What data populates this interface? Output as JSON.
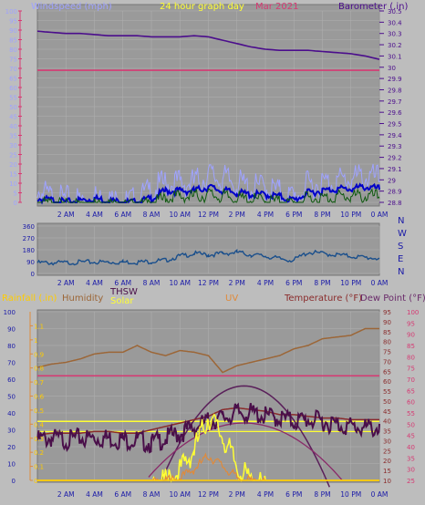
{
  "chart_data": [
    {
      "type": "line",
      "panel": "wind-barometer",
      "title": "24 hour graph day",
      "subtitle": "Mar 2021",
      "left_axis_label": "Windspeed (mph)",
      "right_axis_label": "Barometer (.in)",
      "left_ticks": [
        "100",
        "95",
        "90",
        "85",
        "80",
        "75",
        "70",
        "65",
        "60",
        "55",
        "50",
        "45",
        "40",
        "35",
        "30",
        "25",
        "20",
        "15",
        "10",
        "5",
        "0"
      ],
      "right_ticks": [
        "30.5",
        "30.4",
        "30.3",
        "30.2",
        "30.1",
        "30",
        "29.9",
        "29.8",
        "29.7",
        "29.6",
        "29.5",
        "29.4",
        "29.3",
        "29.2",
        "29.1",
        "29",
        "28.9",
        "28.8"
      ],
      "x_ticks": [
        "2 AM",
        "4 AM",
        "6 AM",
        "8 AM",
        "10 AM",
        "12 PM",
        "2 PM",
        "4 PM",
        "6 PM",
        "8 PM",
        "10 PM",
        "0 AM"
      ],
      "series": [
        {
          "name": "Barometer",
          "axis": "right",
          "color": "#4b0d8c",
          "x": [
            0,
            1,
            2,
            3,
            4,
            5,
            6,
            7,
            8,
            9,
            10,
            11,
            12,
            13,
            14,
            15,
            16,
            17,
            18,
            19,
            20,
            21,
            22,
            23,
            24
          ],
          "values": [
            30.32,
            30.31,
            30.3,
            30.3,
            30.29,
            30.28,
            30.28,
            30.28,
            30.27,
            30.27,
            30.27,
            30.28,
            30.27,
            30.24,
            30.21,
            30.18,
            30.16,
            30.15,
            30.15,
            30.15,
            30.14,
            30.13,
            30.12,
            30.1,
            30.07
          ]
        },
        {
          "name": "Pink reference",
          "axis": "left",
          "color": "#d63a73",
          "x": [
            0,
            24
          ],
          "values": [
            69,
            69
          ]
        },
        {
          "name": "Wind gust",
          "axis": "left",
          "color": "#9fa3ff",
          "x": [
            0,
            1,
            2,
            3,
            4,
            5,
            6,
            7,
            8,
            9,
            10,
            11,
            12,
            13,
            14,
            15,
            16,
            17,
            18,
            19,
            20,
            21,
            22,
            23,
            24
          ],
          "values": [
            10,
            6,
            5,
            5,
            6,
            5,
            3,
            5,
            10,
            14,
            14,
            14,
            18,
            16,
            14,
            11,
            12,
            9,
            6,
            13,
            14,
            15,
            16,
            17,
            16
          ]
        },
        {
          "name": "Wind avg",
          "axis": "left",
          "color": "#0000c8",
          "x": [
            0,
            1,
            2,
            3,
            4,
            5,
            6,
            7,
            8,
            9,
            10,
            11,
            12,
            13,
            14,
            15,
            16,
            17,
            18,
            19,
            20,
            21,
            22,
            23,
            24
          ],
          "values": [
            3,
            2,
            1,
            2,
            3,
            2,
            1,
            1,
            3,
            7,
            7,
            7,
            9,
            7,
            6,
            5,
            5,
            4,
            2,
            6,
            7,
            8,
            8,
            9,
            8
          ]
        },
        {
          "name": "Wind speed",
          "axis": "left",
          "color": "#0f5a0f",
          "x": [
            0,
            1,
            2,
            3,
            4,
            5,
            6,
            7,
            8,
            9,
            10,
            11,
            12,
            13,
            14,
            15,
            16,
            17,
            18,
            19,
            20,
            21,
            22,
            23,
            24
          ],
          "values": [
            1,
            1,
            0,
            1,
            1,
            1,
            0,
            0,
            1,
            4,
            5,
            5,
            6,
            5,
            4,
            3,
            3,
            2,
            1,
            4,
            4,
            5,
            5,
            5,
            5
          ]
        }
      ]
    },
    {
      "type": "line",
      "panel": "wind-direction",
      "left_ticks": [
        "360",
        "270",
        "180",
        "90",
        "0"
      ],
      "right_labels": [
        "N",
        "W",
        "S",
        "E",
        "N"
      ],
      "x_ticks": [
        "2 AM",
        "4 AM",
        "6 AM",
        "8 AM",
        "10 AM",
        "12 PM",
        "2 PM",
        "4 PM",
        "6 PM",
        "8 PM",
        "10 PM",
        "0 AM"
      ],
      "ylim": [
        0,
        360
      ],
      "series": [
        {
          "name": "Wind direction",
          "color": "#1a4f8c",
          "x": [
            0,
            1,
            2,
            3,
            4,
            5,
            6,
            7,
            8,
            9,
            10,
            11,
            12,
            13,
            14,
            15,
            16,
            17,
            18,
            19,
            20,
            21,
            22,
            23,
            24
          ],
          "values": [
            90,
            90,
            90,
            95,
            95,
            95,
            95,
            95,
            100,
            110,
            140,
            160,
            150,
            160,
            170,
            150,
            140,
            120,
            110,
            170,
            160,
            150,
            140,
            130,
            125
          ]
        }
      ]
    },
    {
      "type": "line",
      "panel": "temperature-humidity",
      "legend": [
        "Rainfall (.in)",
        "Humidity",
        "THSW",
        "Solar",
        "UV",
        "Temperature (°F)",
        "Dew Point (°F)"
      ],
      "left_ticks_outer": [
        "100",
        "90",
        "80",
        "70",
        "60",
        "50",
        "40",
        "30",
        "20",
        "10",
        "0"
      ],
      "left_ticks_inner": [
        "1.1",
        "1",
        "0.9",
        "0.8",
        "0.7",
        "0.6",
        "0.5",
        "0.4",
        "0.3",
        "0.2",
        "0.1",
        "0"
      ],
      "right_ticks_inner": [
        "95",
        "90",
        "85",
        "80",
        "75",
        "70",
        "65",
        "60",
        "55",
        "50",
        "45",
        "40",
        "35",
        "30",
        "25",
        "20",
        "15",
        "10"
      ],
      "right_ticks_outer": [
        "100",
        "95",
        "90",
        "85",
        "80",
        "75",
        "70",
        "65",
        "60",
        "55",
        "50",
        "45",
        "40",
        "35",
        "30",
        "25"
      ],
      "x_ticks": [
        "2 AM",
        "4 AM",
        "6 AM",
        "8 AM",
        "10 AM",
        "12 PM",
        "2 PM",
        "4 PM",
        "6 PM",
        "8 PM",
        "10 PM",
        "0 AM"
      ],
      "series": [
        {
          "name": "Humidity",
          "color": "#9c6637",
          "x": [
            0,
            1,
            2,
            3,
            4,
            5,
            6,
            7,
            8,
            9,
            10,
            11,
            12,
            13,
            14,
            15,
            16,
            17,
            18,
            19,
            20,
            21,
            22,
            23,
            24
          ],
          "values": [
            67,
            69,
            70,
            72,
            75,
            76,
            76,
            80,
            76,
            74,
            77,
            76,
            74,
            64,
            68,
            70,
            72,
            74,
            78,
            80,
            84,
            85,
            86,
            90,
            90
          ]
        },
        {
          "name": "Pink reference",
          "color": "#d63a73",
          "x": [
            0,
            24
          ],
          "values": [
            62,
            62
          ]
        },
        {
          "name": "Temperature",
          "color": "#8a2b2b",
          "x": [
            0,
            1,
            2,
            3,
            4,
            5,
            6,
            7,
            8,
            9,
            10,
            11,
            12,
            13,
            14,
            15,
            16,
            17,
            18,
            19,
            20,
            21,
            22,
            23,
            24
          ],
          "values": [
            27,
            28,
            28,
            28,
            29,
            29,
            28,
            28,
            30,
            32,
            34,
            36,
            38,
            42,
            43,
            42,
            41,
            39,
            39,
            38,
            37,
            37,
            36,
            36,
            36
          ]
        },
        {
          "name": "THSW",
          "color": "#4a0f4a",
          "x": [
            0,
            1,
            2,
            3,
            4,
            5,
            6,
            7,
            8,
            9,
            10,
            11,
            12,
            13,
            14,
            15,
            16,
            17,
            18,
            19,
            20,
            21,
            22,
            23,
            24
          ],
          "values": [
            27,
            28,
            27,
            28,
            28,
            28,
            27,
            27,
            25,
            28,
            31,
            34,
            38,
            40,
            43,
            43,
            41,
            40,
            38,
            39,
            38,
            36,
            35,
            34,
            34
          ]
        },
        {
          "name": "Solar",
          "color": "#ffff33",
          "x": [
            0,
            1,
            2,
            3,
            4,
            5,
            6,
            7,
            8,
            9,
            10,
            11,
            12,
            13,
            14,
            15,
            16,
            17,
            18,
            19,
            20,
            21,
            22,
            23,
            24
          ],
          "values": [
            0,
            0,
            0,
            0,
            0,
            0,
            0,
            0,
            0,
            3,
            10,
            22,
            42,
            30,
            12,
            3,
            0,
            0,
            0,
            0,
            0,
            0,
            0,
            0,
            0
          ]
        },
        {
          "name": "UV",
          "color": "#e08a3a",
          "x": [
            0,
            1,
            2,
            3,
            4,
            5,
            6,
            7,
            8,
            9,
            10,
            11,
            12,
            13,
            14,
            15,
            16,
            17,
            18,
            19,
            20,
            21,
            22,
            23,
            24
          ],
          "values": [
            0,
            0,
            0,
            0,
            0,
            0,
            0,
            0,
            0,
            1,
            3,
            8,
            16,
            10,
            3,
            1,
            0,
            0,
            0,
            0,
            0,
            0,
            0,
            0,
            0
          ]
        },
        {
          "name": "Dew Point",
          "color": "#6a2a6a",
          "x": [
            0,
            4,
            8,
            12,
            16,
            20,
            24
          ],
          "values": [
            0,
            0,
            20,
            56,
            30,
            0,
            0
          ]
        },
        {
          "name": "Rainfall",
          "color": "#ffcc00",
          "x": [
            0,
            24
          ],
          "values": [
            0,
            0
          ]
        }
      ]
    }
  ]
}
